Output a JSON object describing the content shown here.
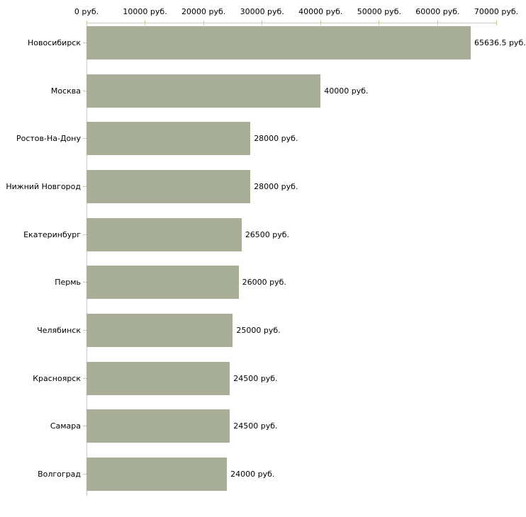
{
  "chart_data": {
    "type": "bar",
    "orientation": "horizontal",
    "title": "",
    "unit": "руб.",
    "categories": [
      "Новосибирск",
      "Москва",
      "Ростов-На-Дону",
      "Нижний Новгород",
      "Екатеринбург",
      "Пермь",
      "Челябинск",
      "Красноярск",
      "Самара",
      "Волгоград"
    ],
    "values": [
      65636.5,
      40000,
      28000,
      28000,
      26500,
      26000,
      25000,
      24500,
      24500,
      24000
    ],
    "value_labels": [
      "65636.5 руб.",
      "40000 руб.",
      "28000 руб.",
      "28000 руб.",
      "26500 руб.",
      "26000 руб.",
      "25000 руб.",
      "24500 руб.",
      "24500 руб.",
      "24000 руб."
    ],
    "x_tick_values": [
      0,
      10000,
      20000,
      30000,
      40000,
      50000,
      60000,
      70000
    ],
    "x_tick_labels": [
      "0 руб.",
      "10000 руб.",
      "20000 руб.",
      "30000 руб.",
      "40000 руб.",
      "50000 руб.",
      "60000 руб.",
      "70000 руб."
    ],
    "xlim": [
      0,
      70000
    ],
    "grid": false,
    "legend": null,
    "axis_position": "top",
    "colors": {
      "bar": "#a9ae98",
      "axis_line": "#cccccc",
      "tick_mark": "#cccc99",
      "text": "#000000",
      "background": "#ffffff"
    }
  }
}
